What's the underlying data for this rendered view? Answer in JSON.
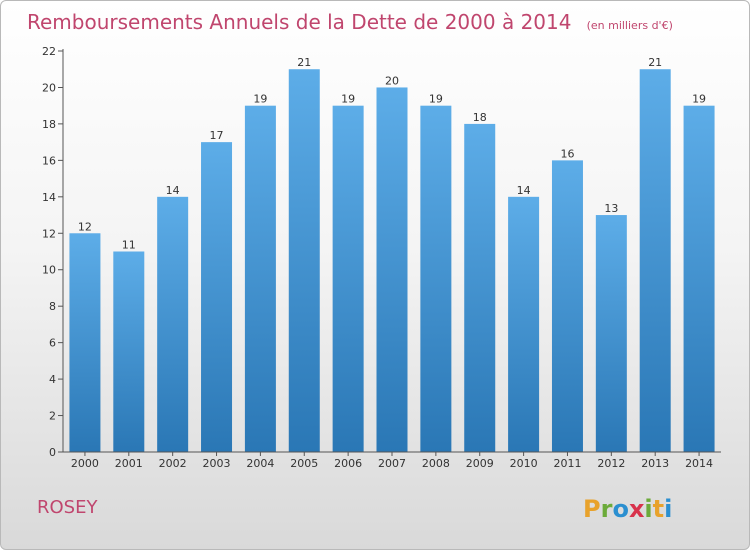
{
  "chart_data": {
    "type": "bar",
    "title": "Remboursements Annuels de la Dette de 2000 à 2014",
    "subtitle": "(en milliers d'€)",
    "categories": [
      "2000",
      "2001",
      "2002",
      "2003",
      "2004",
      "2005",
      "2006",
      "2007",
      "2008",
      "2009",
      "2010",
      "2011",
      "2012",
      "2013",
      "2014"
    ],
    "values": [
      12,
      11,
      14,
      17,
      19,
      21,
      19,
      20,
      19,
      18,
      14,
      16,
      13,
      21,
      19
    ],
    "ylim": [
      0,
      22
    ],
    "yticks": [
      0,
      2,
      4,
      6,
      8,
      10,
      12,
      14,
      16,
      18,
      20,
      22
    ],
    "grid": false,
    "bar_color_top": "#5dade8",
    "bar_color_bottom": "#2a77b5"
  },
  "footer": {
    "commune": "ROSEY",
    "logo_letters": [
      "P",
      "r",
      "o",
      "x",
      "i",
      "t",
      "i"
    ],
    "logo_colors": [
      "#e8a22b",
      "#6cab3a",
      "#2b8fd0",
      "#d8324b",
      "#6cab3a",
      "#e8a22b",
      "#2b8fd0"
    ]
  },
  "colors": {
    "title": "#c0466e",
    "axis": "#555555"
  }
}
